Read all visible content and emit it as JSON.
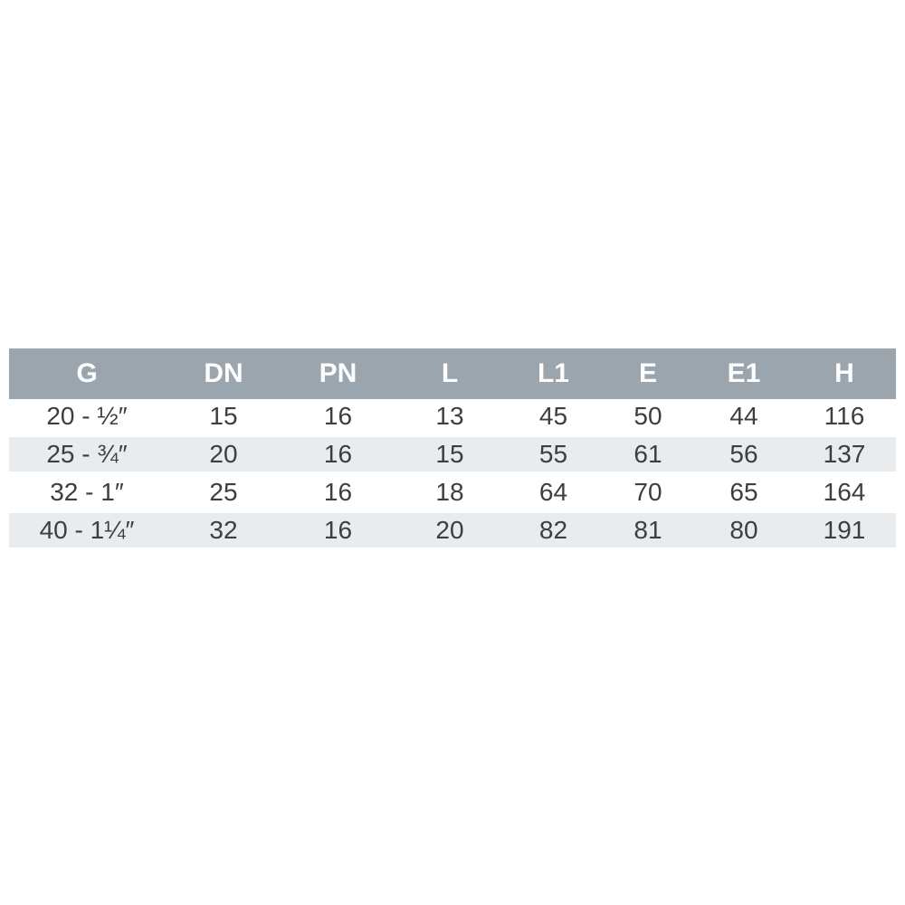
{
  "chart_data": {
    "type": "table",
    "columns": [
      "G",
      "DN",
      "PN",
      "L",
      "L1",
      "E",
      "E1",
      "H"
    ],
    "rows": [
      [
        "20 - ½″",
        "15",
        "16",
        "13",
        "45",
        "50",
        "44",
        "116"
      ],
      [
        "25 - ¾″",
        "20",
        "16",
        "15",
        "55",
        "61",
        "56",
        "137"
      ],
      [
        "32 - 1″",
        "25",
        "16",
        "18",
        "64",
        "70",
        "65",
        "164"
      ],
      [
        "40 - 1¼″",
        "32",
        "16",
        "20",
        "82",
        "81",
        "80",
        "191"
      ]
    ],
    "title": "",
    "layout": {
      "header_position": "top",
      "row_striping": "alternating",
      "grid": "off"
    }
  },
  "colors": {
    "header_bg": "#9aa5ad",
    "header_text": "#ffffff",
    "row_alt_bg": "#e8ecee",
    "row_bg": "#ffffff",
    "cell_text": "#3d3e40",
    "page_bg": "#ffffff"
  }
}
